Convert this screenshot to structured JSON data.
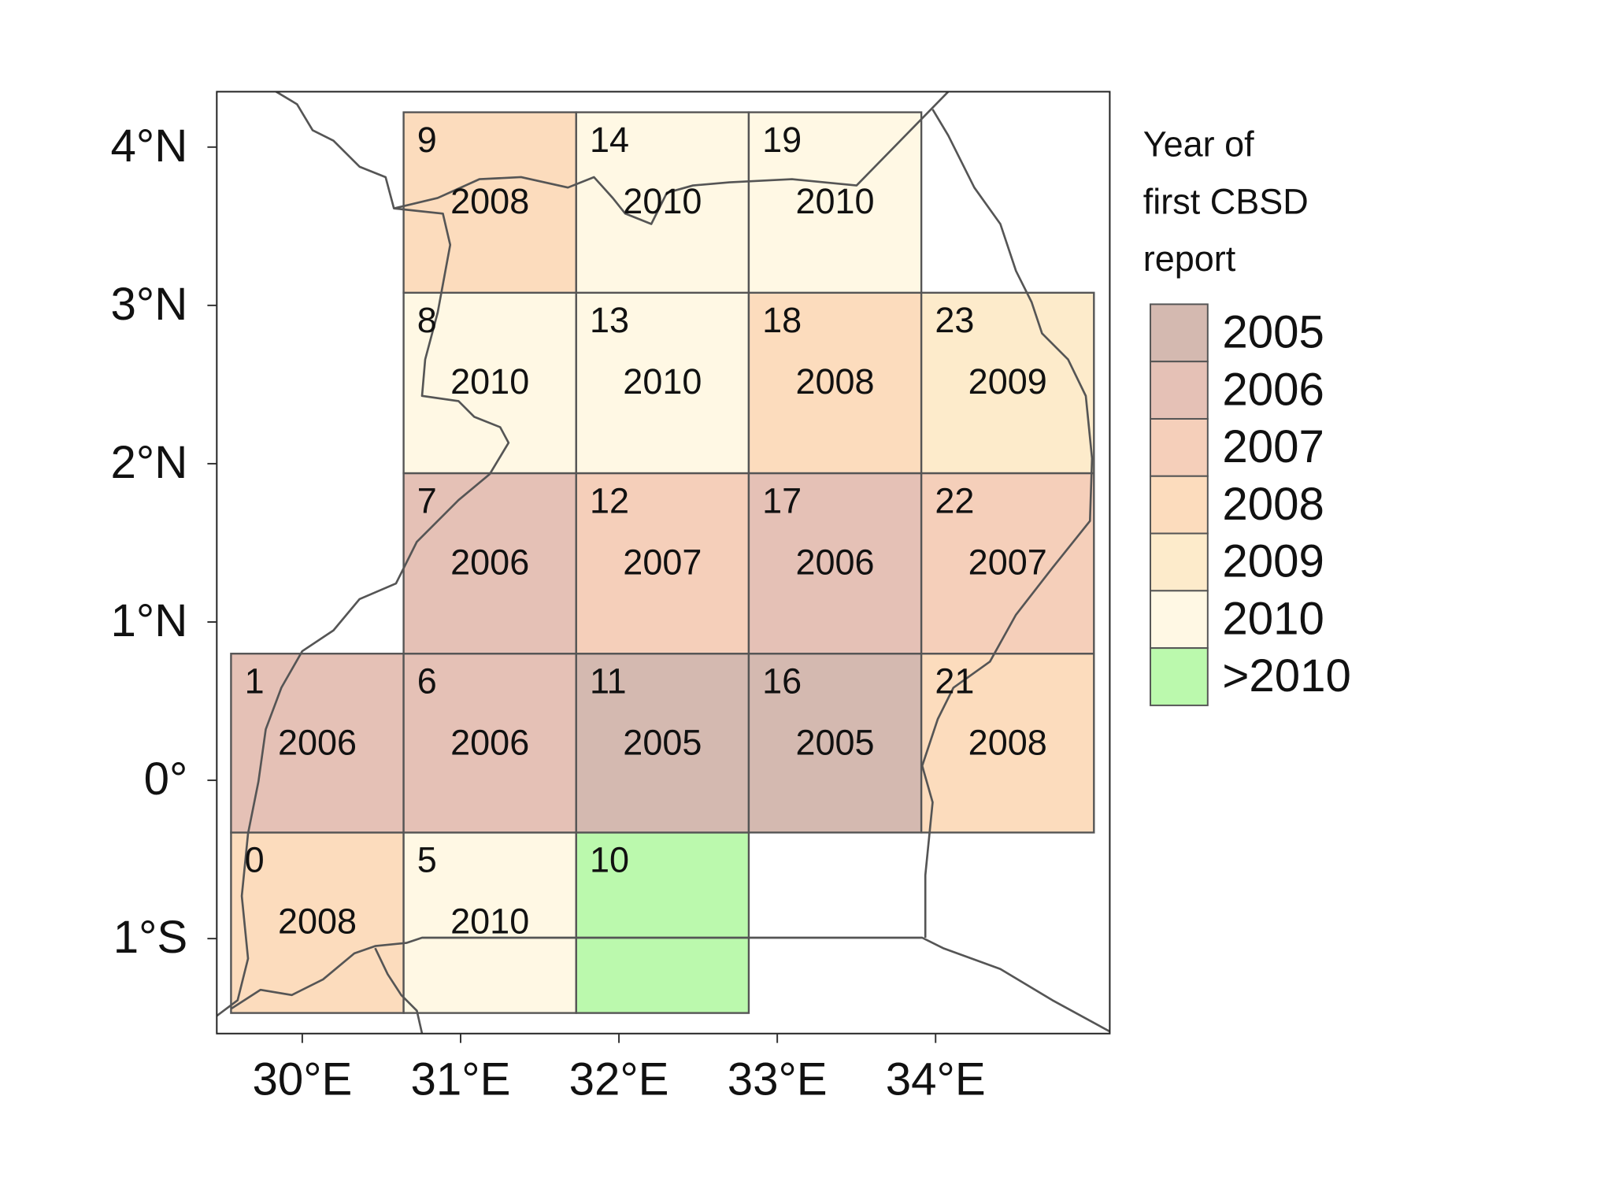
{
  "map": {
    "xlim": [
      29.46,
      35.1
    ],
    "ylim": [
      -1.6,
      4.35
    ],
    "xticks": [
      {
        "value": 30,
        "label": "30°E"
      },
      {
        "value": 31,
        "label": "31°E"
      },
      {
        "value": 32,
        "label": "32°E"
      },
      {
        "value": 33,
        "label": "33°E"
      },
      {
        "value": 34,
        "label": "34°E"
      }
    ],
    "yticks": [
      {
        "value": 4,
        "label": "4°N"
      },
      {
        "value": 3,
        "label": "3°N"
      },
      {
        "value": 2,
        "label": "2°N"
      },
      {
        "value": 1,
        "label": "1°N"
      },
      {
        "value": 0,
        "label": "0°"
      },
      {
        "value": -1,
        "label": "1°S"
      }
    ],
    "legend": {
      "title": [
        "Year of",
        "first CBSD",
        "report"
      ],
      "items": [
        {
          "label": "2005",
          "color": "#d4b9b0"
        },
        {
          "label": "2006",
          "color": "#e5c1b6"
        },
        {
          "label": "2007",
          "color": "#f5cfba"
        },
        {
          "label": "2008",
          "color": "#fcdcbd"
        },
        {
          "label": "2009",
          "color": "#fdebcb"
        },
        {
          "label": "2010",
          "color": "#fff8e4"
        },
        {
          "label": ">2010",
          "color": "#bbf9ad"
        }
      ]
    },
    "cells": [
      {
        "id": "0",
        "year": "2008",
        "class": 3,
        "lon": [
          29.55,
          30.64
        ],
        "lat": [
          -1.47,
          -0.33
        ]
      },
      {
        "id": "1",
        "year": "2006",
        "class": 1,
        "lon": [
          29.55,
          30.64
        ],
        "lat": [
          -0.33,
          0.8
        ]
      },
      {
        "id": "5",
        "year": "2010",
        "class": 5,
        "lon": [
          30.64,
          31.73
        ],
        "lat": [
          -1.47,
          -0.33
        ]
      },
      {
        "id": "6",
        "year": "2006",
        "class": 1,
        "lon": [
          30.64,
          31.73
        ],
        "lat": [
          -0.33,
          0.8
        ]
      },
      {
        "id": "7",
        "year": "2006",
        "class": 1,
        "lon": [
          30.64,
          31.73
        ],
        "lat": [
          0.8,
          1.94
        ]
      },
      {
        "id": "8",
        "year": "2010",
        "class": 5,
        "lon": [
          30.64,
          31.73
        ],
        "lat": [
          1.94,
          3.08
        ]
      },
      {
        "id": "9",
        "year": "2008",
        "class": 3,
        "lon": [
          30.64,
          31.73
        ],
        "lat": [
          3.08,
          4.22
        ]
      },
      {
        "id": "10",
        "year": null,
        "class": 6,
        "lon": [
          31.73,
          32.82
        ],
        "lat": [
          -1.47,
          -0.33
        ]
      },
      {
        "id": "11",
        "year": "2005",
        "class": 0,
        "lon": [
          31.73,
          32.82
        ],
        "lat": [
          -0.33,
          0.8
        ]
      },
      {
        "id": "12",
        "year": "2007",
        "class": 2,
        "lon": [
          31.73,
          32.82
        ],
        "lat": [
          0.8,
          1.94
        ]
      },
      {
        "id": "13",
        "year": "2010",
        "class": 5,
        "lon": [
          31.73,
          32.82
        ],
        "lat": [
          1.94,
          3.08
        ]
      },
      {
        "id": "14",
        "year": "2010",
        "class": 5,
        "lon": [
          31.73,
          32.82
        ],
        "lat": [
          3.08,
          4.22
        ]
      },
      {
        "id": "16",
        "year": "2005",
        "class": 0,
        "lon": [
          32.82,
          33.91
        ],
        "lat": [
          -0.33,
          0.8
        ]
      },
      {
        "id": "17",
        "year": "2006",
        "class": 1,
        "lon": [
          32.82,
          33.91
        ],
        "lat": [
          0.8,
          1.94
        ]
      },
      {
        "id": "18",
        "year": "2008",
        "class": 3,
        "lon": [
          32.82,
          33.91
        ],
        "lat": [
          1.94,
          3.08
        ]
      },
      {
        "id": "19",
        "year": "2010",
        "class": 5,
        "lon": [
          32.82,
          33.91
        ],
        "lat": [
          3.08,
          4.22
        ]
      },
      {
        "id": "21",
        "year": "2008",
        "class": 3,
        "lon": [
          33.91,
          35.0
        ],
        "lat": [
          -0.33,
          0.8
        ]
      },
      {
        "id": "22",
        "year": "2007",
        "class": 2,
        "lon": [
          33.91,
          35.0
        ],
        "lat": [
          0.8,
          1.94
        ]
      },
      {
        "id": "23",
        "year": "2009",
        "class": 4,
        "lon": [
          33.91,
          35.0
        ],
        "lat": [
          1.94,
          3.08
        ]
      }
    ]
  }
}
